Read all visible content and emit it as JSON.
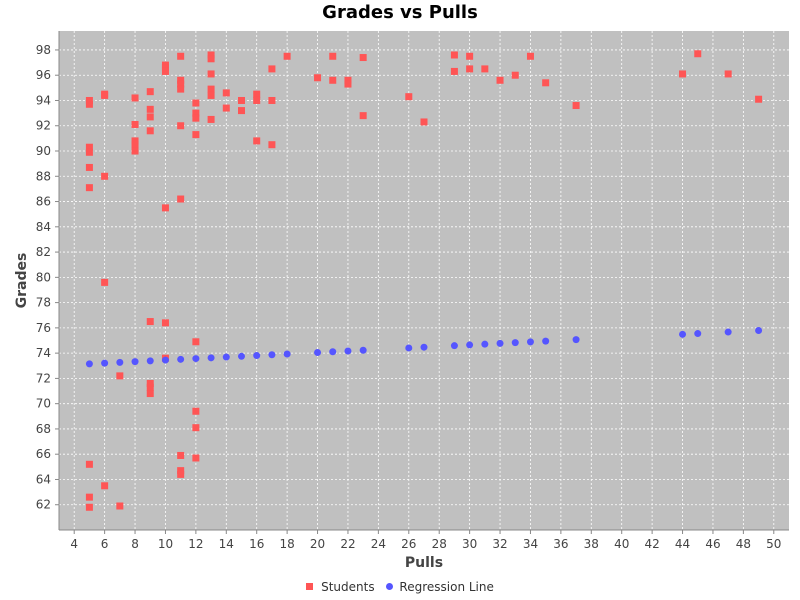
{
  "chart_data": {
    "type": "scatter",
    "title": "Grades vs Pulls",
    "xlabel": "Pulls",
    "ylabel": "Grades",
    "xlim": [
      3,
      51
    ],
    "ylim": [
      60,
      99.5
    ],
    "x_ticks": [
      4,
      6,
      8,
      10,
      12,
      14,
      16,
      18,
      20,
      22,
      24,
      26,
      28,
      30,
      32,
      34,
      36,
      38,
      40,
      42,
      44,
      46,
      48,
      50
    ],
    "y_ticks": [
      62,
      64,
      66,
      68,
      70,
      72,
      74,
      76,
      78,
      80,
      82,
      84,
      86,
      88,
      90,
      92,
      94,
      96,
      98
    ],
    "grid": true,
    "legend_position": "bottom",
    "background_color": "#c0c0c0",
    "series": [
      {
        "name": "Students",
        "marker": "square",
        "color": "#ff5555",
        "points": [
          [
            5,
            93.7
          ],
          [
            5,
            94.0
          ],
          [
            5,
            90.3
          ],
          [
            5,
            89.9
          ],
          [
            5,
            88.7
          ],
          [
            5,
            87.1
          ],
          [
            5,
            65.2
          ],
          [
            5,
            62.6
          ],
          [
            5,
            61.8
          ],
          [
            6,
            94.5
          ],
          [
            6,
            94.4
          ],
          [
            6,
            88.0
          ],
          [
            6,
            79.6
          ],
          [
            6,
            63.5
          ],
          [
            7,
            72.2
          ],
          [
            7,
            61.9
          ],
          [
            8,
            94.2
          ],
          [
            8,
            92.1
          ],
          [
            8,
            90.8
          ],
          [
            8,
            90.5
          ],
          [
            8,
            90.0
          ],
          [
            9,
            94.7
          ],
          [
            9,
            93.3
          ],
          [
            9,
            92.7
          ],
          [
            9,
            91.6
          ],
          [
            9,
            76.5
          ],
          [
            9,
            71.6
          ],
          [
            9,
            71.3
          ],
          [
            9,
            70.8
          ],
          [
            10,
            96.8
          ],
          [
            10,
            96.6
          ],
          [
            10,
            96.3
          ],
          [
            10,
            85.5
          ],
          [
            10,
            76.4
          ],
          [
            10,
            73.6
          ],
          [
            11,
            97.5
          ],
          [
            11,
            95.6
          ],
          [
            11,
            95.3
          ],
          [
            11,
            94.9
          ],
          [
            11,
            92.0
          ],
          [
            11,
            86.2
          ],
          [
            11,
            65.9
          ],
          [
            11,
            64.7
          ],
          [
            11,
            64.4
          ],
          [
            12,
            93.8
          ],
          [
            12,
            93.0
          ],
          [
            12,
            92.6
          ],
          [
            12,
            91.3
          ],
          [
            12,
            74.9
          ],
          [
            12,
            69.4
          ],
          [
            12,
            68.1
          ],
          [
            12,
            65.7
          ],
          [
            13,
            97.6
          ],
          [
            13,
            97.3
          ],
          [
            13,
            96.1
          ],
          [
            13,
            94.9
          ],
          [
            13,
            94.4
          ],
          [
            13,
            92.5
          ],
          [
            14,
            94.6
          ],
          [
            14,
            93.4
          ],
          [
            15,
            94.0
          ],
          [
            15,
            93.2
          ],
          [
            16,
            94.5
          ],
          [
            16,
            94.0
          ],
          [
            16,
            90.8
          ],
          [
            17,
            96.5
          ],
          [
            17,
            94.0
          ],
          [
            17,
            90.5
          ],
          [
            18,
            97.5
          ],
          [
            20,
            95.8
          ],
          [
            21,
            97.5
          ],
          [
            21,
            95.6
          ],
          [
            22,
            95.6
          ],
          [
            22,
            95.3
          ],
          [
            23,
            97.4
          ],
          [
            23,
            92.8
          ],
          [
            26,
            94.3
          ],
          [
            27,
            92.3
          ],
          [
            29,
            97.6
          ],
          [
            29,
            96.3
          ],
          [
            30,
            97.5
          ],
          [
            30,
            96.5
          ],
          [
            31,
            96.5
          ],
          [
            32,
            95.6
          ],
          [
            33,
            96.0
          ],
          [
            34,
            97.5
          ],
          [
            35,
            95.4
          ],
          [
            37,
            93.6
          ],
          [
            44,
            96.1
          ],
          [
            45,
            97.7
          ],
          [
            47,
            96.1
          ],
          [
            49,
            94.1
          ]
        ]
      },
      {
        "name": "Regression Line",
        "marker": "circle",
        "color": "#5555ff",
        "points": [
          [
            5,
            73.15
          ],
          [
            6,
            73.21
          ],
          [
            7,
            73.27
          ],
          [
            8,
            73.33
          ],
          [
            9,
            73.39
          ],
          [
            10,
            73.45
          ],
          [
            11,
            73.51
          ],
          [
            12,
            73.57
          ],
          [
            13,
            73.63
          ],
          [
            14,
            73.69
          ],
          [
            15,
            73.75
          ],
          [
            16,
            73.81
          ],
          [
            17,
            73.87
          ],
          [
            18,
            73.93
          ],
          [
            20,
            74.05
          ],
          [
            21,
            74.11
          ],
          [
            22,
            74.17
          ],
          [
            23,
            74.23
          ],
          [
            26,
            74.41
          ],
          [
            27,
            74.47
          ],
          [
            29,
            74.59
          ],
          [
            30,
            74.65
          ],
          [
            31,
            74.71
          ],
          [
            32,
            74.77
          ],
          [
            33,
            74.83
          ],
          [
            34,
            74.89
          ],
          [
            35,
            74.95
          ],
          [
            37,
            75.07
          ],
          [
            44,
            75.49
          ],
          [
            45,
            75.55
          ],
          [
            47,
            75.67
          ],
          [
            49,
            75.79
          ]
        ]
      }
    ]
  }
}
